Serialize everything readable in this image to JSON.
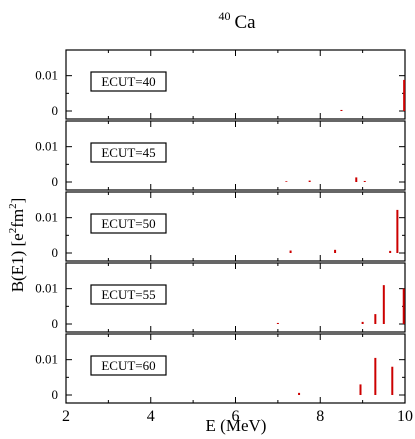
{
  "chart_data": {
    "type": "bar",
    "title": {
      "superscript": "40",
      "main": "Ca"
    },
    "xlabel": "E (MeV)",
    "ylabel": {
      "p1": "B(E1) [e",
      "sup1": "2",
      "p2": "fm",
      "sup2": "2",
      "p3": "]"
    },
    "xlim": [
      2,
      10
    ],
    "ylim": [
      0,
      0.015
    ],
    "xticks": [
      2,
      4,
      6,
      8,
      10
    ],
    "xtick_labels": [
      "2",
      "4",
      "6",
      "8",
      "10"
    ],
    "yticks": [
      0,
      0.01
    ],
    "ytick_labels": [
      "0",
      "0.01"
    ],
    "bar_color": "#cc0000",
    "grid": false,
    "panels": [
      {
        "label": "ECUT=40",
        "bars": [
          {
            "x": 8.5,
            "y": 0.0003
          },
          {
            "x": 9.98,
            "y": 0.0088
          }
        ]
      },
      {
        "label": "ECUT=45",
        "bars": [
          {
            "x": 7.2,
            "y": 0.0002
          },
          {
            "x": 7.75,
            "y": 0.0004
          },
          {
            "x": 8.85,
            "y": 0.0013
          },
          {
            "x": 9.05,
            "y": 0.0003
          }
        ]
      },
      {
        "label": "ECUT=50",
        "bars": [
          {
            "x": 7.3,
            "y": 0.0007
          },
          {
            "x": 8.35,
            "y": 0.0009
          },
          {
            "x": 9.65,
            "y": 0.0006
          },
          {
            "x": 9.82,
            "y": 0.0122
          }
        ]
      },
      {
        "label": "ECUT=55",
        "bars": [
          {
            "x": 7.0,
            "y": 0.0003
          },
          {
            "x": 9.0,
            "y": 0.0006
          },
          {
            "x": 9.3,
            "y": 0.0028
          },
          {
            "x": 9.5,
            "y": 0.011
          },
          {
            "x": 9.97,
            "y": 0.01
          }
        ]
      },
      {
        "label": "ECUT=60",
        "bars": [
          {
            "x": 7.5,
            "y": 0.0006
          },
          {
            "x": 8.95,
            "y": 0.003
          },
          {
            "x": 9.3,
            "y": 0.0105
          },
          {
            "x": 9.7,
            "y": 0.008
          }
        ]
      }
    ]
  }
}
